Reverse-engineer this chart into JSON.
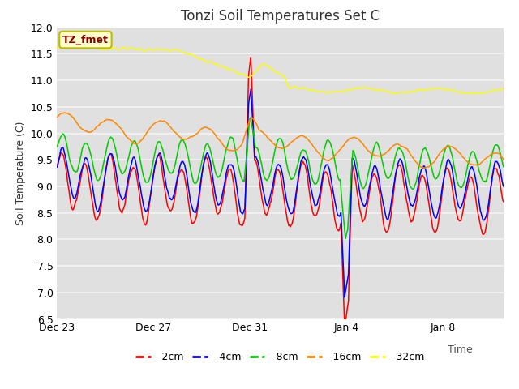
{
  "title": "Tonzi Soil Temperatures Set C",
  "ylabel": "Soil Temperature (C)",
  "ylim": [
    6.5,
    12.0
  ],
  "yticks": [
    6.5,
    7.0,
    7.5,
    8.0,
    8.5,
    9.0,
    9.5,
    10.0,
    10.5,
    11.0,
    11.5,
    12.0
  ],
  "fig_bg_color": "#ffffff",
  "plot_bg_color": "#e0e0e0",
  "grid_color": "#f0f0f0",
  "label_box_text": "TZ_fmet",
  "label_box_facecolor": "#ffffcc",
  "label_box_edgecolor": "#bbbb00",
  "label_box_textcolor": "#880000",
  "line_colors": {
    "-2cm": "#ff0000",
    "-4cm": "#0000ff",
    "-8cm": "#00cc00",
    "-16cm": "#ff8800",
    "-32cm": "#ffff00"
  },
  "legend_labels": [
    "-2cm",
    "-4cm",
    "-8cm",
    "-16cm",
    "-32cm"
  ],
  "xtick_labels": [
    "Dec 23",
    "Dec 27",
    "Dec 31",
    "Jan 4",
    "Jan 8"
  ],
  "xtick_positions": [
    0,
    4,
    8,
    12,
    16
  ],
  "xlim": [
    0,
    18.5
  ],
  "title_fontsize": 12,
  "axis_fontsize": 9,
  "tick_fontsize": 9
}
